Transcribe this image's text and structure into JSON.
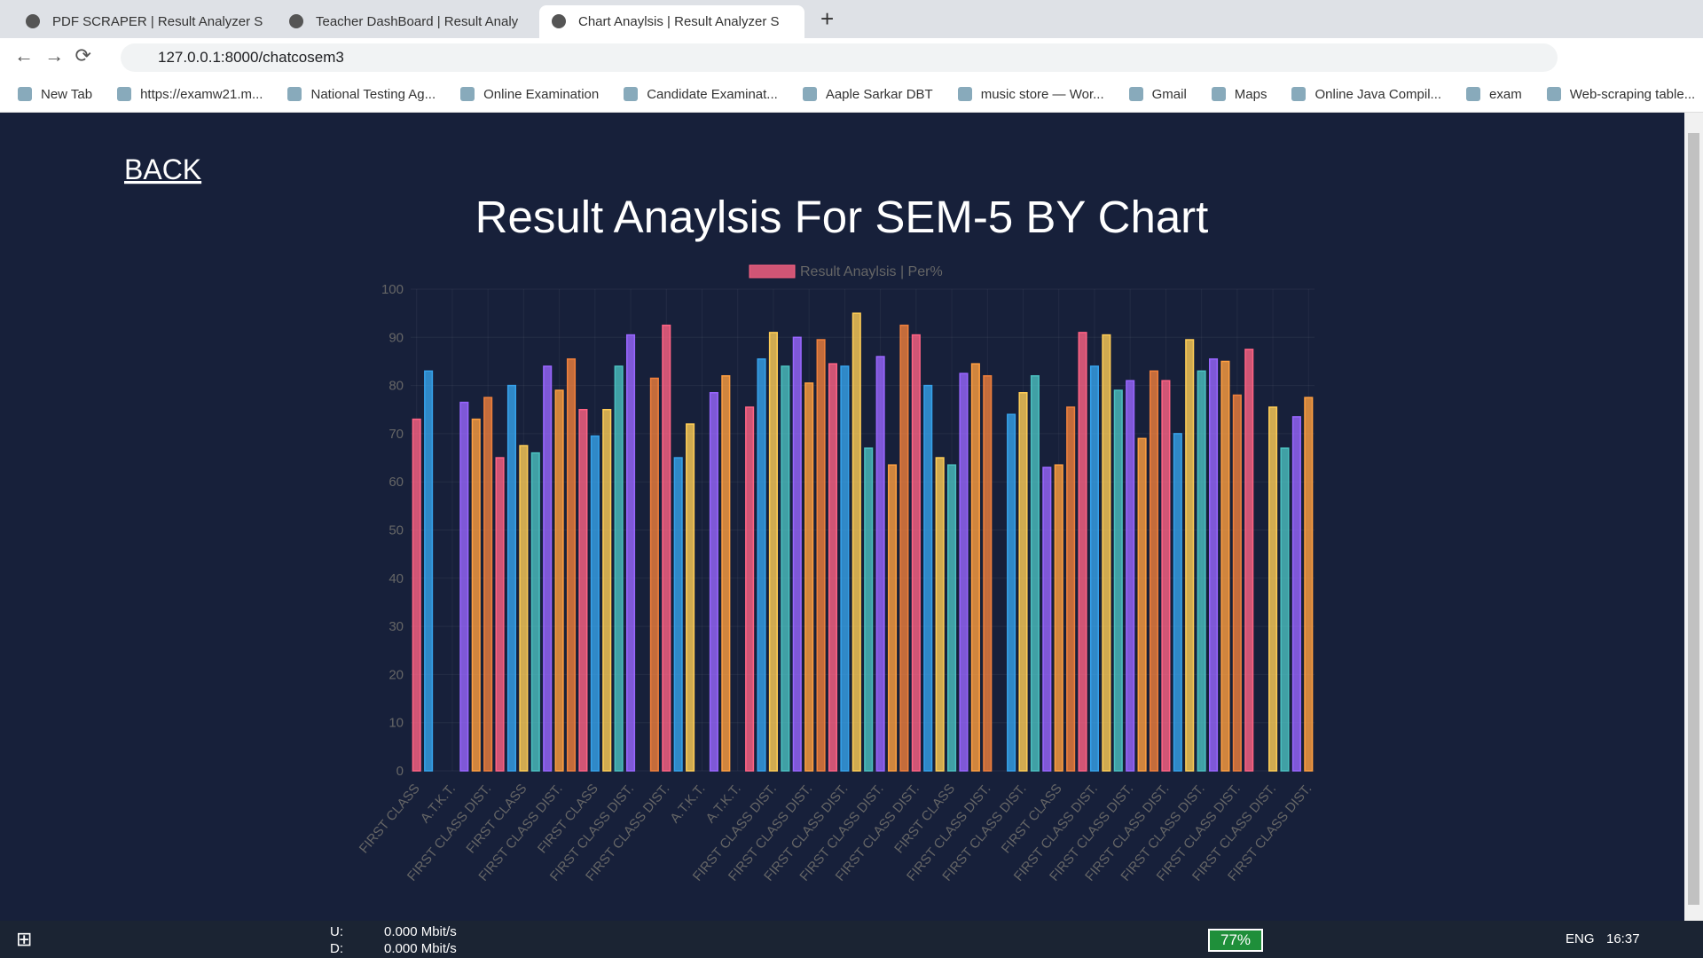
{
  "browser": {
    "tabs": [
      "PDF SCRAPER | Result Analyzer S",
      "Teacher DashBoard | Result Analy",
      "Chart Anaylsis | Result Analyzer S"
    ],
    "url": "127.0.0.1:8000/chatcosem3",
    "bookmarks": [
      "New Tab",
      "https://examw21.m...",
      "National Testing Ag...",
      "Online Examination",
      "Candidate Examinat...",
      "Aaple Sarkar DBT",
      "music store — Wor...",
      "Gmail",
      "Maps",
      "Online Java Compil...",
      "exam",
      "Web-scraping table..."
    ]
  },
  "page": {
    "back": "BACK"
  },
  "chart_data": {
    "type": "bar",
    "title": "Result Anaylsis For SEM-5 BY Chart",
    "series_name": "Result Anaylsis | Per%",
    "legend_color": "#ff6384",
    "palette": [
      "#ff6384",
      "#36a2eb",
      "#ffcd56",
      "#4bc0c0",
      "#9966ff",
      "#ff9f40",
      "#f0803c"
    ],
    "categories": [
      "FIRST CLASS",
      null,
      null,
      "A.T.K.T.",
      null,
      null,
      "FIRST CLASS DIST.",
      null,
      null,
      "FIRST CLASS",
      null,
      null,
      "FIRST CLASS DIST.",
      null,
      null,
      "FIRST CLASS",
      null,
      null,
      "FIRST CLASS DIST.",
      null,
      null,
      "FIRST CLASS DIST.",
      null,
      null,
      "A.T.K.T.",
      null,
      null,
      "A.T.K.T.",
      null,
      null,
      "FIRST CLASS DIST.",
      null,
      null,
      "FIRST CLASS DIST.",
      null,
      null,
      "FIRST CLASS DIST.",
      null,
      null,
      "FIRST CLASS DIST.",
      null,
      null,
      "FIRST CLASS DIST.",
      null,
      null,
      "FIRST CLASS",
      null,
      null,
      "FIRST CLASS DIST.",
      null,
      null,
      "FIRST CLASS DIST.",
      null,
      null,
      "FIRST CLASS",
      null,
      null,
      "FIRST CLASS DIST.",
      null,
      null,
      "FIRST CLASS DIST.",
      null,
      null,
      "FIRST CLASS DIST.",
      null,
      null,
      "FIRST CLASS DIST.",
      null,
      null,
      "FIRST CLASS DIST.",
      null,
      null,
      "FIRST CLASS DIST.",
      null,
      null,
      "FIRST CLASS DIST."
    ],
    "values": [
      73,
      83,
      0,
      0,
      76.5,
      73,
      77.5,
      65,
      80,
      67.5,
      66,
      84,
      79,
      85.5,
      75,
      69.5,
      75,
      84,
      90.5,
      0,
      81.5,
      92.5,
      65,
      72,
      0,
      78.5,
      82,
      0,
      75.5,
      85.5,
      91,
      84,
      90,
      80.5,
      89.5,
      84.5,
      84,
      95,
      67,
      86,
      63.5,
      92.5,
      90.5,
      80,
      65,
      63.5,
      82.5,
      84.5,
      82,
      0,
      74,
      78.5,
      82,
      63,
      63.5,
      75.5,
      91,
      84,
      90.5,
      79,
      81,
      69,
      83,
      81,
      70,
      89.5,
      83,
      85.5,
      85,
      78,
      87.5,
      0,
      75.5,
      67,
      73.5,
      77.5
    ],
    "ylim": [
      0,
      100
    ],
    "yticks": [
      0,
      10,
      20,
      30,
      40,
      50,
      60,
      70,
      80,
      90,
      100
    ],
    "grid": true
  },
  "taskbar": {
    "up_label": "U:",
    "down_label": "D:",
    "up": "0.000 Mbit/s",
    "down": "0.000 Mbit/s",
    "battery": "77%",
    "lang": "ENG",
    "time": "16:37"
  }
}
